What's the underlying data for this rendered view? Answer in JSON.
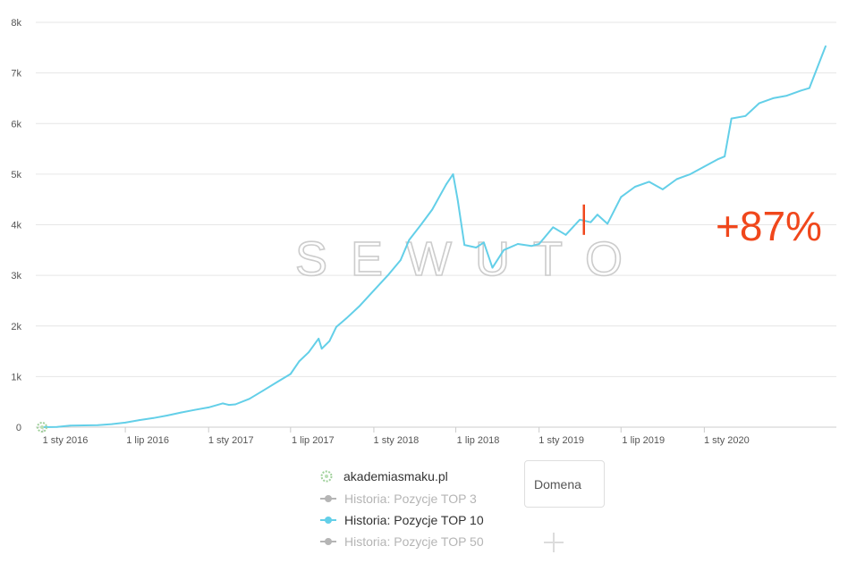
{
  "watermark": "SEWUTO",
  "growth_label": "+87%",
  "legend": {
    "domain": "akademiasmaku.pl",
    "items": [
      {
        "label": "Historia: Pozycje TOP 3",
        "active": false
      },
      {
        "label": "Historia: Pozycje TOP 10",
        "active": true
      },
      {
        "label": "Historia: Pozycje TOP 50",
        "active": false
      }
    ]
  },
  "domain_input": {
    "label": "Domena"
  },
  "colors": {
    "line": "#63cfe8",
    "grid": "#e6e6e6",
    "axis": "#cccccc",
    "growth": "#f0471c",
    "watermark": "#cccccc"
  },
  "chart_data": {
    "type": "line",
    "title": "",
    "xlabel": "",
    "ylabel": "",
    "ylim": [
      0,
      8000
    ],
    "y_ticks": [
      0,
      1000,
      2000,
      3000,
      4000,
      5000,
      6000,
      7000,
      8000
    ],
    "y_tick_labels": [
      "0",
      "1k",
      "2k",
      "3k",
      "4k",
      "5k",
      "6k",
      "7k",
      "8k"
    ],
    "x_tick_dates": [
      "2016-01-01",
      "2016-07-01",
      "2017-01-01",
      "2017-07-01",
      "2018-01-01",
      "2018-07-01",
      "2019-01-01",
      "2019-07-01",
      "2020-01-01"
    ],
    "x_tick_labels": [
      "1 sty 2016",
      "1 lip 2016",
      "1 sty 2017",
      "1 lip 2017",
      "1 sty 2018",
      "1 lip 2018",
      "1 sty 2019",
      "1 lip 2019",
      "1 sty 2020"
    ],
    "x_range": [
      "2016-01-01",
      "2020-09-25"
    ],
    "grid": true,
    "legend_position": "bottom",
    "marker": {
      "date": "2019-04-10",
      "label": "+87%"
    },
    "series": [
      {
        "name": "Historia: Pozycje TOP 10",
        "points": [
          [
            "2016-01-01",
            0
          ],
          [
            "2016-02-01",
            5
          ],
          [
            "2016-03-01",
            30
          ],
          [
            "2016-04-01",
            35
          ],
          [
            "2016-05-01",
            40
          ],
          [
            "2016-06-01",
            60
          ],
          [
            "2016-07-01",
            90
          ],
          [
            "2016-08-01",
            140
          ],
          [
            "2016-09-01",
            180
          ],
          [
            "2016-10-01",
            230
          ],
          [
            "2016-11-01",
            290
          ],
          [
            "2016-12-01",
            340
          ],
          [
            "2017-01-01",
            390
          ],
          [
            "2017-02-01",
            470
          ],
          [
            "2017-02-15",
            440
          ],
          [
            "2017-03-01",
            450
          ],
          [
            "2017-04-01",
            560
          ],
          [
            "2017-05-01",
            720
          ],
          [
            "2017-06-01",
            890
          ],
          [
            "2017-07-01",
            1050
          ],
          [
            "2017-07-20",
            1300
          ],
          [
            "2017-08-10",
            1480
          ],
          [
            "2017-09-01",
            1750
          ],
          [
            "2017-09-08",
            1550
          ],
          [
            "2017-09-25",
            1700
          ],
          [
            "2017-10-10",
            1980
          ],
          [
            "2017-11-01",
            2150
          ],
          [
            "2017-12-01",
            2400
          ],
          [
            "2018-01-01",
            2700
          ],
          [
            "2018-02-01",
            3000
          ],
          [
            "2018-03-01",
            3300
          ],
          [
            "2018-03-20",
            3700
          ],
          [
            "2018-04-15",
            4000
          ],
          [
            "2018-05-10",
            4300
          ],
          [
            "2018-06-10",
            4800
          ],
          [
            "2018-06-25",
            5000
          ],
          [
            "2018-07-05",
            4500
          ],
          [
            "2018-07-20",
            3600
          ],
          [
            "2018-08-15",
            3550
          ],
          [
            "2018-09-01",
            3650
          ],
          [
            "2018-09-20",
            3150
          ],
          [
            "2018-10-15",
            3500
          ],
          [
            "2018-11-15",
            3620
          ],
          [
            "2018-12-15",
            3580
          ],
          [
            "2019-01-01",
            3620
          ],
          [
            "2019-02-01",
            3950
          ],
          [
            "2019-03-01",
            3800
          ],
          [
            "2019-04-01",
            4100
          ],
          [
            "2019-04-25",
            4050
          ],
          [
            "2019-05-10",
            4200
          ],
          [
            "2019-06-01",
            4020
          ],
          [
            "2019-07-01",
            4550
          ],
          [
            "2019-08-01",
            4750
          ],
          [
            "2019-09-01",
            4850
          ],
          [
            "2019-10-01",
            4700
          ],
          [
            "2019-11-01",
            4900
          ],
          [
            "2019-12-01",
            5000
          ],
          [
            "2020-01-01",
            5150
          ],
          [
            "2020-02-01",
            5300
          ],
          [
            "2020-02-15",
            5350
          ],
          [
            "2020-03-01",
            6100
          ],
          [
            "2020-04-01",
            6150
          ],
          [
            "2020-05-01",
            6400
          ],
          [
            "2020-06-01",
            6500
          ],
          [
            "2020-07-01",
            6550
          ],
          [
            "2020-08-01",
            6650
          ],
          [
            "2020-08-20",
            6700
          ],
          [
            "2020-09-25",
            7530
          ]
        ]
      }
    ]
  }
}
